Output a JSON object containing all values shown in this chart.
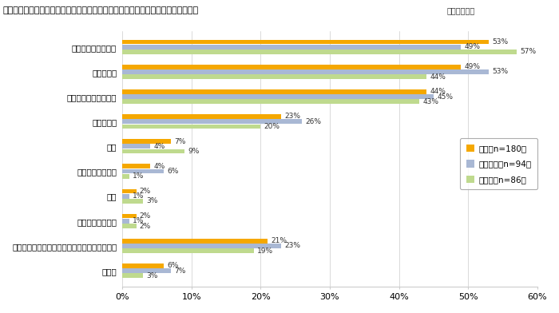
{
  "title": "》図２－２　コロナ禁により、ニーズが増えたリフォーム（リフォームの種類）》",
  "title_raw": "【図２－２　コロナ禍により、ニーズが増えたリフォーム（リフォームの種類）】",
  "subtitle": "（複数回答）",
  "categories": [
    "修繕・メンテナンス",
    "設備の更新",
    "間取り変更・模様替え",
    "性能の向上",
    "増築",
    "近隣への住み替え",
    "減築",
    "郊外への住み替え",
    "リフォーム種類によるニーズの変化は感じない",
    "その他"
  ],
  "series_names": [
    "全体（n=180）",
    "大都市圏（n=94）",
    "地方圏（n=86）"
  ],
  "series_values": [
    [
      53,
      49,
      44,
      23,
      7,
      4,
      2,
      2,
      21,
      6
    ],
    [
      49,
      53,
      45,
      26,
      4,
      6,
      1,
      1,
      23,
      7
    ],
    [
      57,
      44,
      43,
      20,
      9,
      1,
      3,
      2,
      19,
      3
    ]
  ],
  "colors": [
    "#F5A800",
    "#A9B8D4",
    "#BFDA8E"
  ],
  "xlim": [
    0,
    60
  ],
  "xticks": [
    0,
    10,
    20,
    30,
    40,
    50,
    60
  ],
  "bar_height": 0.2,
  "background_color": "#FFFFFF",
  "label_fontsize": 6.5,
  "tick_fontsize": 7.5,
  "ylabel_fontsize": 7.5
}
